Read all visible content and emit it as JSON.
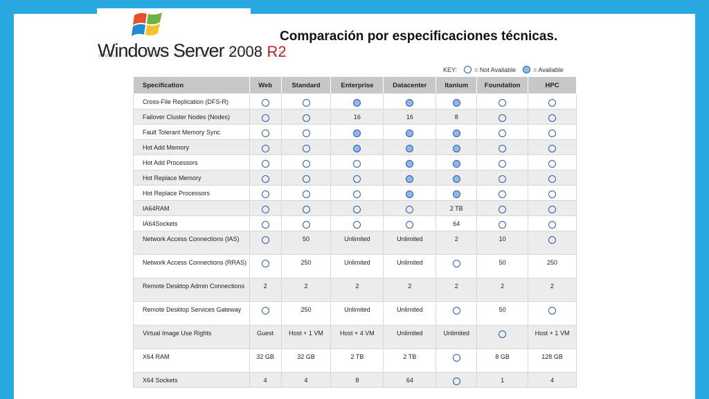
{
  "slide": {
    "title": "Comparación por especificaciones técnicas.",
    "logo": {
      "windows": "Windows Server",
      "version": "2008",
      "r2": "R2"
    },
    "key": {
      "label": "KEY:",
      "empty": "= Not Available",
      "full": "= Available"
    },
    "colors": {
      "background": "#29a8e0",
      "header": "#c7c7c7",
      "circle_fill": "#8fb7e8",
      "circle_border": "#2b5aa8",
      "logo_r2": "#c0282b"
    }
  },
  "table": {
    "headers": [
      "Specification",
      "Web",
      "Standard",
      "Enterprise",
      "Datacenter",
      "Itanium",
      "Foundation",
      "HPC"
    ],
    "rows": [
      {
        "spec": "Cross-File Replication (DFS-R)",
        "cells": [
          "O",
          "O",
          "●",
          "●",
          "●",
          "O",
          "O"
        ]
      },
      {
        "spec": "Failover Cluster Nodes (Nodes)",
        "cells": [
          "O",
          "O",
          "16",
          "16",
          "8",
          "O",
          "O"
        ]
      },
      {
        "spec": "Fault Tolerant Memory Sync",
        "cells": [
          "O",
          "O",
          "●",
          "●",
          "●",
          "O",
          "O"
        ]
      },
      {
        "spec": "Hot Add Memory",
        "cells": [
          "O",
          "O",
          "●",
          "●",
          "●",
          "O",
          "O"
        ]
      },
      {
        "spec": "Hot Add Processors",
        "cells": [
          "O",
          "O",
          "O",
          "●",
          "●",
          "O",
          "O"
        ]
      },
      {
        "spec": "Hot Replace Memory",
        "cells": [
          "O",
          "O",
          "O",
          "●",
          "●",
          "O",
          "O"
        ]
      },
      {
        "spec": "Hot Replace Processors",
        "cells": [
          "O",
          "O",
          "O",
          "●",
          "●",
          "O",
          "O"
        ]
      },
      {
        "spec": "IA64RAM",
        "cells": [
          "O",
          "O",
          "O",
          "O",
          "2 TB",
          "O",
          "O"
        ]
      },
      {
        "spec": "IA64Sockets",
        "cells": [
          "O",
          "O",
          "O",
          "O",
          "64",
          "O",
          "O"
        ]
      },
      {
        "spec": "Network Access Connections (IAS)",
        "cells": [
          "O",
          "50",
          "Unlimited",
          "Unlimited",
          "2",
          "10",
          "O"
        ]
      },
      {
        "spec": "Network Access Connections (RRAS)",
        "cells": [
          "O",
          "250",
          "Unlimited",
          "Unlimited",
          "O",
          "50",
          "250"
        ]
      },
      {
        "spec": "Remote Desktop Admin Connections",
        "cells": [
          "2",
          "2",
          "2",
          "2",
          "2",
          "2",
          "2"
        ]
      },
      {
        "spec": "Remote Desktop Services Gateway",
        "cells": [
          "O",
          "250",
          "Unlimited",
          "Unlimited",
          "O",
          "50",
          "O"
        ]
      },
      {
        "spec": "Virtual Image Use Rights",
        "cells": [
          "Guest",
          "Host + 1 VM",
          "Host + 4 VM",
          "Unlimited",
          "Unlimited",
          "O",
          "Host + 1 VM"
        ]
      },
      {
        "spec": "X64 RAM",
        "cells": [
          "32 GB",
          "32 GB",
          "2 TB",
          "2 TB",
          "O",
          "8 GB",
          "128 GB"
        ]
      },
      {
        "spec": "X64 Sockets",
        "cells": [
          "4",
          "4",
          "8",
          "64",
          "O",
          "1",
          "4"
        ]
      }
    ]
  }
}
